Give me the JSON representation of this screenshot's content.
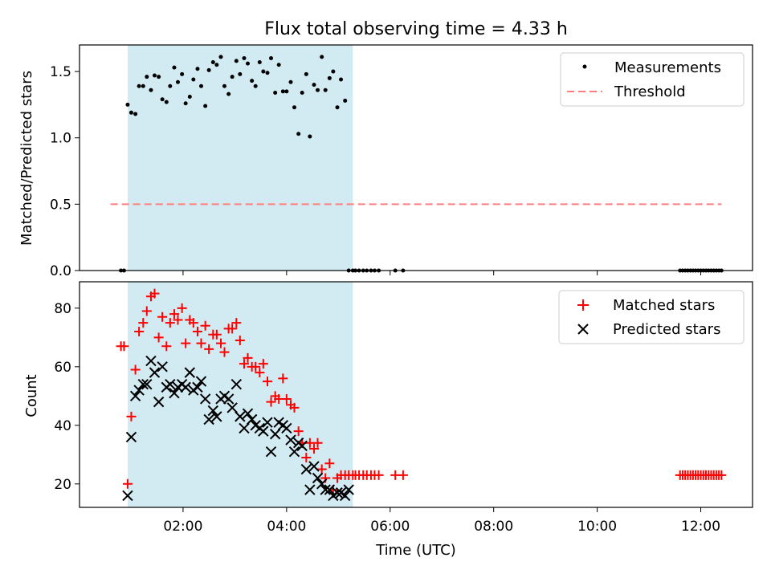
{
  "chart_data": [
    {
      "type": "scatter",
      "title": "Flux total observing time = 4.33 h",
      "xlabel": "",
      "ylabel": "Matched/Predicted stars",
      "xlim": [
        0.0,
        13.0
      ],
      "ylim": [
        0.0,
        1.7
      ],
      "yticks": [
        0.0,
        0.5,
        1.0,
        1.5
      ],
      "yticklabels": [
        "0.0",
        "0.5",
        "1.0",
        "1.5"
      ],
      "grid": false,
      "legend_position": "top-right",
      "shaded_span": {
        "x0": 0.93,
        "x1": 5.28,
        "color": "#add8e6"
      },
      "series": [
        {
          "name": "Measurements",
          "marker": "dot",
          "color": "#000000",
          "x": [
            0.8,
            0.86,
            0.93,
            1.0,
            1.08,
            1.15,
            1.23,
            1.3,
            1.38,
            1.45,
            1.53,
            1.6,
            1.68,
            1.75,
            1.83,
            1.9,
            1.98,
            2.05,
            2.13,
            2.2,
            2.28,
            2.35,
            2.43,
            2.5,
            2.58,
            2.65,
            2.73,
            2.8,
            2.88,
            2.95,
            3.03,
            3.1,
            3.18,
            3.25,
            3.33,
            3.4,
            3.48,
            3.55,
            3.63,
            3.7,
            3.78,
            3.85,
            3.93,
            4.0,
            4.08,
            4.15,
            4.23,
            4.3,
            4.38,
            4.45,
            4.53,
            4.6,
            4.68,
            4.75,
            4.83,
            4.9,
            4.98,
            5.05,
            5.13,
            5.2,
            5.28,
            5.33,
            5.4,
            5.48,
            5.55,
            5.63,
            5.7,
            5.78,
            6.1,
            6.25,
            11.6,
            11.65,
            11.7,
            11.75,
            11.8,
            11.85,
            11.9,
            11.95,
            12.0,
            12.05,
            12.1,
            12.15,
            12.2,
            12.25,
            12.3,
            12.35,
            12.4
          ],
          "y": [
            0.0,
            0.0,
            1.25,
            1.19,
            1.18,
            1.39,
            1.39,
            1.46,
            1.36,
            1.47,
            1.46,
            1.29,
            1.27,
            1.39,
            1.53,
            1.42,
            1.48,
            1.26,
            1.31,
            1.44,
            1.52,
            1.39,
            1.24,
            1.51,
            1.57,
            1.55,
            1.61,
            1.39,
            1.33,
            1.46,
            1.58,
            1.48,
            1.6,
            1.56,
            1.43,
            1.39,
            1.57,
            1.5,
            1.49,
            1.6,
            1.34,
            1.55,
            1.35,
            1.35,
            1.42,
            1.23,
            1.03,
            1.34,
            1.48,
            1.01,
            1.4,
            1.36,
            1.61,
            1.36,
            1.45,
            1.5,
            1.23,
            1.44,
            1.28,
            0.0,
            0.0,
            0.0,
            0.0,
            0.0,
            0.0,
            0.0,
            0.0,
            0.0,
            0.0,
            0.0,
            0.0,
            0.0,
            0.0,
            0.0,
            0.0,
            0.0,
            0.0,
            0.0,
            0.0,
            0.0,
            0.0,
            0.0,
            0.0,
            0.0,
            0.0,
            0.0,
            0.0
          ]
        },
        {
          "name": "Threshold",
          "marker": "dashed-line",
          "color": "#ff7f7f",
          "x": [
            0.6,
            12.4
          ],
          "y": [
            0.5,
            0.5
          ]
        }
      ]
    },
    {
      "type": "scatter",
      "title": "",
      "xlabel": "Time (UTC)",
      "ylabel": "Count",
      "xlim": [
        0.0,
        13.0
      ],
      "ylim": [
        12,
        89
      ],
      "xticks": [
        2,
        4,
        6,
        8,
        10,
        12
      ],
      "xticklabels": [
        "02:00",
        "04:00",
        "06:00",
        "08:00",
        "10:00",
        "12:00"
      ],
      "yticks": [
        20,
        40,
        60,
        80
      ],
      "yticklabels": [
        "20",
        "40",
        "60",
        "80"
      ],
      "grid": false,
      "legend_position": "top-right",
      "shaded_span": {
        "x0": 0.93,
        "x1": 5.28,
        "color": "#add8e6"
      },
      "series": [
        {
          "name": "Matched stars",
          "marker": "plus",
          "color": "#ff0000",
          "x": [
            0.8,
            0.86,
            0.93,
            1.0,
            1.08,
            1.15,
            1.23,
            1.3,
            1.38,
            1.45,
            1.53,
            1.6,
            1.68,
            1.75,
            1.83,
            1.9,
            1.98,
            2.05,
            2.13,
            2.2,
            2.28,
            2.35,
            2.43,
            2.5,
            2.58,
            2.65,
            2.73,
            2.8,
            2.88,
            2.95,
            3.03,
            3.1,
            3.18,
            3.25,
            3.33,
            3.4,
            3.48,
            3.55,
            3.63,
            3.7,
            3.78,
            3.85,
            3.93,
            4.0,
            4.08,
            4.15,
            4.23,
            4.3,
            4.38,
            4.45,
            4.53,
            4.6,
            4.68,
            4.75,
            4.83,
            4.9,
            4.98,
            5.05,
            5.13,
            5.2,
            5.28,
            5.33,
            5.4,
            5.48,
            5.55,
            5.63,
            5.7,
            5.78,
            6.1,
            6.25,
            11.6,
            11.65,
            11.7,
            11.75,
            11.8,
            11.85,
            11.9,
            11.95,
            12.0,
            12.05,
            12.1,
            12.15,
            12.2,
            12.25,
            12.3,
            12.35,
            12.4
          ],
          "y": [
            67,
            67,
            20,
            43,
            59,
            72,
            75,
            79,
            84,
            85,
            70,
            77,
            67,
            75,
            78,
            76,
            80,
            68,
            76,
            75,
            72,
            68,
            74,
            66,
            71,
            71,
            68,
            65,
            73,
            73,
            75,
            69,
            61,
            63,
            60,
            60,
            58,
            61,
            55,
            48,
            50,
            49,
            56,
            49,
            47,
            46,
            38,
            34,
            29,
            34,
            32,
            34,
            25,
            22,
            27,
            18,
            22,
            23,
            23,
            23,
            23,
            23,
            23,
            23,
            23,
            23,
            23,
            23,
            23,
            23,
            23,
            23,
            23,
            23,
            23,
            23,
            23,
            23,
            23,
            23,
            23,
            23,
            23,
            23,
            23,
            23,
            23
          ]
        },
        {
          "name": "Predicted stars",
          "marker": "x",
          "color": "#000000",
          "x": [
            0.93,
            1.0,
            1.08,
            1.15,
            1.23,
            1.3,
            1.38,
            1.45,
            1.53,
            1.6,
            1.68,
            1.75,
            1.83,
            1.9,
            1.98,
            2.05,
            2.13,
            2.2,
            2.28,
            2.35,
            2.43,
            2.5,
            2.58,
            2.65,
            2.73,
            2.8,
            2.88,
            2.95,
            3.03,
            3.1,
            3.18,
            3.25,
            3.33,
            3.4,
            3.48,
            3.55,
            3.63,
            3.7,
            3.78,
            3.85,
            3.93,
            4.0,
            4.08,
            4.15,
            4.23,
            4.3,
            4.38,
            4.45,
            4.53,
            4.6,
            4.68,
            4.75,
            4.83,
            4.9,
            4.98,
            5.05,
            5.13,
            5.2
          ],
          "y": [
            16,
            36,
            50,
            52,
            54,
            54,
            62,
            58,
            48,
            60,
            53,
            54,
            51,
            53,
            54,
            53,
            58,
            52,
            53,
            55,
            49,
            42,
            45,
            43,
            49,
            50,
            49,
            46,
            54,
            43,
            39,
            44,
            42,
            40,
            39,
            38,
            41,
            31,
            37,
            41,
            40,
            39,
            35,
            31,
            34,
            33,
            25,
            18,
            26,
            22,
            20,
            18,
            18,
            16,
            17,
            17,
            16,
            18
          ]
        }
      ]
    }
  ]
}
